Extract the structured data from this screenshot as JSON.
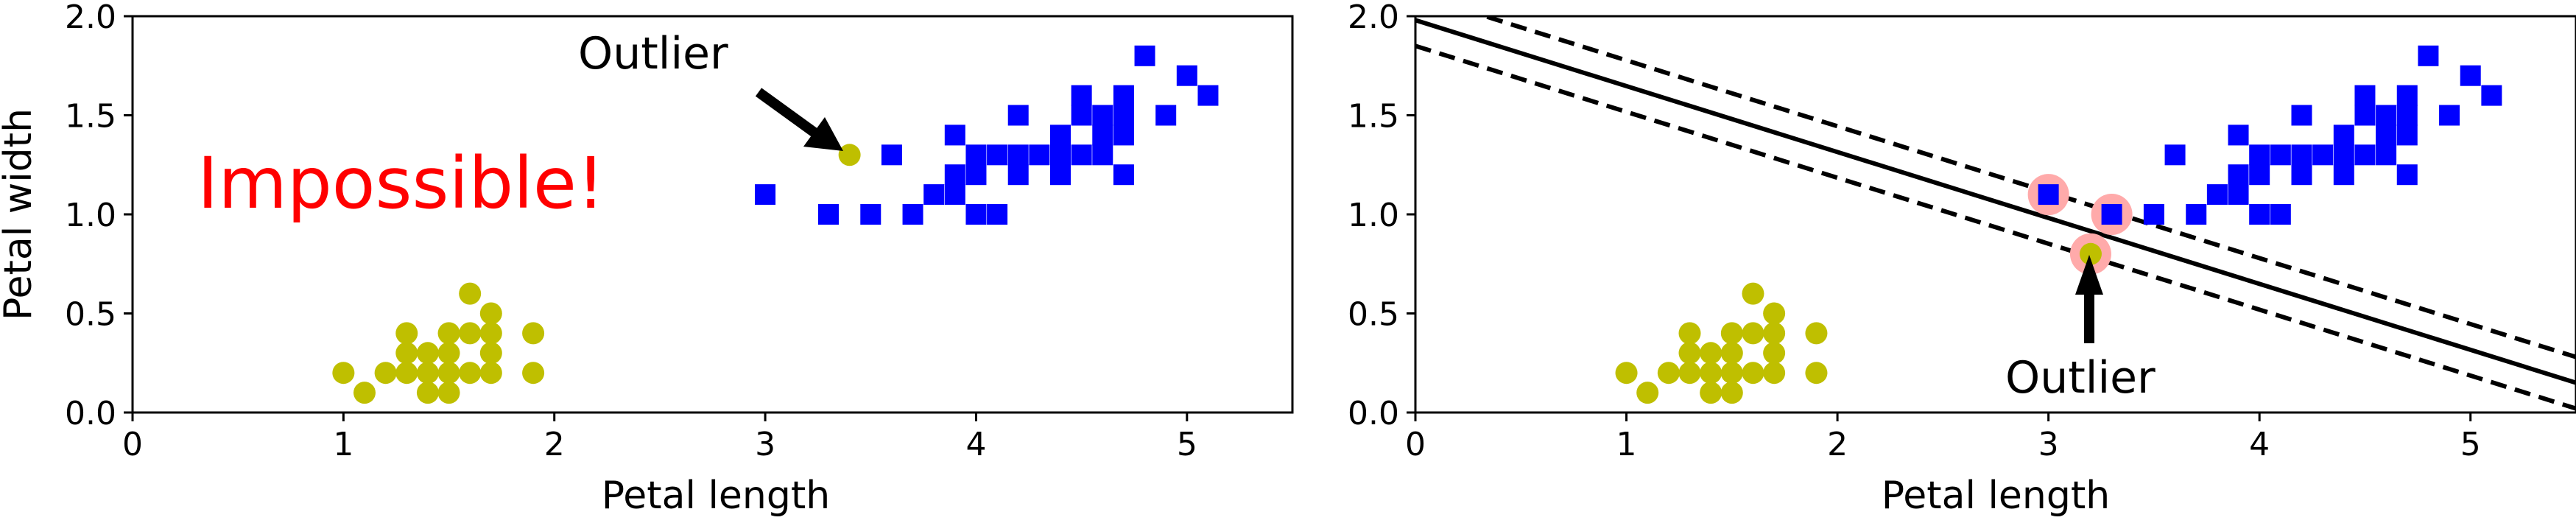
{
  "chart_data": [
    {
      "type": "scatter",
      "title": "",
      "xlabel": "Petal length",
      "ylabel": "Petal width",
      "xlim": [
        0,
        5.5
      ],
      "ylim": [
        0,
        2.0
      ],
      "xticks": [
        "0",
        "1",
        "2",
        "3",
        "4",
        "5"
      ],
      "yticks": [
        "0.0",
        "0.5",
        "1.0",
        "1.5",
        "2.0"
      ],
      "grid": false,
      "series": [
        {
          "marker": "circle",
          "color": "#bfbf00",
          "points": [
            [
              1.0,
              0.2
            ],
            [
              1.1,
              0.1
            ],
            [
              1.2,
              0.2
            ],
            [
              1.3,
              0.2
            ],
            [
              1.3,
              0.3
            ],
            [
              1.3,
              0.4
            ],
            [
              1.4,
              0.1
            ],
            [
              1.4,
              0.2
            ],
            [
              1.4,
              0.3
            ],
            [
              1.5,
              0.1
            ],
            [
              1.5,
              0.2
            ],
            [
              1.5,
              0.3
            ],
            [
              1.5,
              0.4
            ],
            [
              1.6,
              0.2
            ],
            [
              1.6,
              0.4
            ],
            [
              1.6,
              0.6
            ],
            [
              1.7,
              0.2
            ],
            [
              1.7,
              0.3
            ],
            [
              1.7,
              0.4
            ],
            [
              1.7,
              0.5
            ],
            [
              1.9,
              0.2
            ],
            [
              1.9,
              0.4
            ],
            [
              3.4,
              1.3
            ]
          ]
        },
        {
          "marker": "square",
          "color": "#0000ff",
          "points": [
            [
              3.0,
              1.1
            ],
            [
              3.3,
              1.0
            ],
            [
              3.5,
              1.0
            ],
            [
              3.6,
              1.3
            ],
            [
              3.7,
              1.0
            ],
            [
              3.8,
              1.1
            ],
            [
              3.9,
              1.1
            ],
            [
              3.9,
              1.2
            ],
            [
              3.9,
              1.4
            ],
            [
              4.0,
              1.0
            ],
            [
              4.0,
              1.2
            ],
            [
              4.0,
              1.3
            ],
            [
              4.1,
              1.0
            ],
            [
              4.1,
              1.3
            ],
            [
              4.2,
              1.2
            ],
            [
              4.2,
              1.3
            ],
            [
              4.2,
              1.5
            ],
            [
              4.3,
              1.3
            ],
            [
              4.4,
              1.2
            ],
            [
              4.4,
              1.3
            ],
            [
              4.4,
              1.4
            ],
            [
              4.5,
              1.3
            ],
            [
              4.5,
              1.5
            ],
            [
              4.5,
              1.6
            ],
            [
              4.6,
              1.3
            ],
            [
              4.6,
              1.4
            ],
            [
              4.6,
              1.5
            ],
            [
              4.7,
              1.2
            ],
            [
              4.7,
              1.4
            ],
            [
              4.7,
              1.5
            ],
            [
              4.7,
              1.6
            ],
            [
              4.8,
              1.8
            ],
            [
              4.9,
              1.5
            ],
            [
              5.0,
              1.7
            ],
            [
              5.1,
              1.6
            ]
          ]
        }
      ],
      "annotations": [
        {
          "text": "Outlier",
          "point": [
            3.4,
            1.3
          ],
          "text_pos": [
            2.1,
            1.8
          ]
        },
        {
          "text": "Impossible!",
          "pos": [
            0.3,
            1.1
          ],
          "color": "#ff0000"
        }
      ]
    },
    {
      "type": "scatter",
      "title": "",
      "xlabel": "Petal length",
      "ylabel": "",
      "xlim": [
        0,
        5.5
      ],
      "ylim": [
        0,
        2.0
      ],
      "xticks": [
        "0",
        "1",
        "2",
        "3",
        "4",
        "5"
      ],
      "yticks": [
        "0.0",
        "0.5",
        "1.0",
        "1.5",
        "2.0"
      ],
      "grid": false,
      "series": [
        {
          "marker": "circle",
          "color": "#bfbf00",
          "points": [
            [
              1.0,
              0.2
            ],
            [
              1.1,
              0.1
            ],
            [
              1.2,
              0.2
            ],
            [
              1.3,
              0.2
            ],
            [
              1.3,
              0.3
            ],
            [
              1.3,
              0.4
            ],
            [
              1.4,
              0.1
            ],
            [
              1.4,
              0.2
            ],
            [
              1.4,
              0.3
            ],
            [
              1.5,
              0.1
            ],
            [
              1.5,
              0.2
            ],
            [
              1.5,
              0.3
            ],
            [
              1.5,
              0.4
            ],
            [
              1.6,
              0.2
            ],
            [
              1.6,
              0.4
            ],
            [
              1.6,
              0.6
            ],
            [
              1.7,
              0.2
            ],
            [
              1.7,
              0.3
            ],
            [
              1.7,
              0.4
            ],
            [
              1.7,
              0.5
            ],
            [
              1.9,
              0.2
            ],
            [
              1.9,
              0.4
            ],
            [
              3.2,
              0.8
            ]
          ]
        },
        {
          "marker": "square",
          "color": "#0000ff",
          "points": [
            [
              3.0,
              1.1
            ],
            [
              3.3,
              1.0
            ],
            [
              3.5,
              1.0
            ],
            [
              3.6,
              1.3
            ],
            [
              3.7,
              1.0
            ],
            [
              3.8,
              1.1
            ],
            [
              3.9,
              1.1
            ],
            [
              3.9,
              1.2
            ],
            [
              3.9,
              1.4
            ],
            [
              4.0,
              1.0
            ],
            [
              4.0,
              1.2
            ],
            [
              4.0,
              1.3
            ],
            [
              4.1,
              1.0
            ],
            [
              4.1,
              1.3
            ],
            [
              4.2,
              1.2
            ],
            [
              4.2,
              1.3
            ],
            [
              4.2,
              1.5
            ],
            [
              4.3,
              1.3
            ],
            [
              4.4,
              1.2
            ],
            [
              4.4,
              1.3
            ],
            [
              4.4,
              1.4
            ],
            [
              4.5,
              1.3
            ],
            [
              4.5,
              1.5
            ],
            [
              4.5,
              1.6
            ],
            [
              4.6,
              1.3
            ],
            [
              4.6,
              1.4
            ],
            [
              4.6,
              1.5
            ],
            [
              4.7,
              1.2
            ],
            [
              4.7,
              1.4
            ],
            [
              4.7,
              1.5
            ],
            [
              4.7,
              1.6
            ],
            [
              4.8,
              1.8
            ],
            [
              4.9,
              1.5
            ],
            [
              5.0,
              1.7
            ],
            [
              5.1,
              1.6
            ]
          ]
        }
      ],
      "support_vectors": {
        "color": "#ffaaaa",
        "points": [
          [
            3.0,
            1.1
          ],
          [
            3.3,
            1.0
          ],
          [
            3.2,
            0.8
          ]
        ]
      },
      "lines": [
        {
          "style": "solid",
          "from": [
            0,
            1.98
          ],
          "to": [
            5.5,
            0.15
          ]
        },
        {
          "style": "dashed",
          "from": [
            0,
            2.11
          ],
          "to": [
            5.5,
            0.28
          ]
        },
        {
          "style": "dashed",
          "from": [
            0,
            1.85
          ],
          "to": [
            5.5,
            0.02
          ]
        }
      ],
      "annotations": [
        {
          "text": "Outlier",
          "point": [
            3.2,
            0.8
          ],
          "text_pos": [
            2.8,
            0.12
          ]
        }
      ]
    }
  ]
}
